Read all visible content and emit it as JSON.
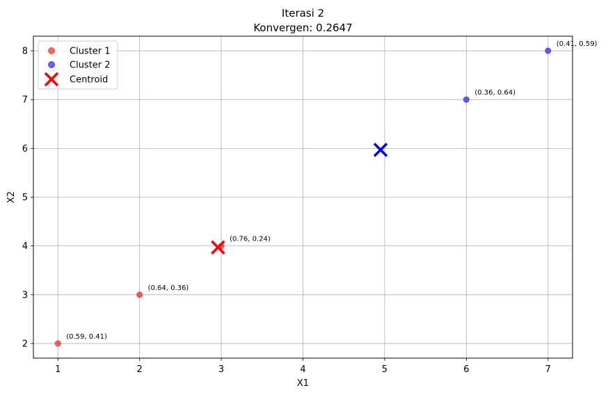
{
  "chart_data": {
    "type": "scatter",
    "title": "Iterasi 2",
    "subtitle": "Konvergen: 0.2647",
    "xlabel": "X1",
    "ylabel": "X2",
    "xlim": [
      0.7,
      7.3
    ],
    "ylim": [
      1.7,
      8.3
    ],
    "xticks": [
      "1",
      "2",
      "3",
      "4",
      "5",
      "6",
      "7"
    ],
    "yticks": [
      "2",
      "3",
      "4",
      "5",
      "6",
      "7",
      "8"
    ],
    "grid": true,
    "legend_position": "top-left",
    "series": [
      {
        "name": "Cluster 1",
        "color": "#ff0000",
        "marker": "circle",
        "points": [
          {
            "x": 1,
            "y": 2,
            "label": "(0.59, 0.41)"
          },
          {
            "x": 2,
            "y": 3,
            "label": "(0.64, 0.36)"
          },
          {
            "x": 3,
            "y": 4,
            "label": "(0.76, 0.24)"
          }
        ]
      },
      {
        "name": "Cluster 2",
        "color": "#0000ff",
        "marker": "circle",
        "points": [
          {
            "x": 6,
            "y": 7,
            "label": "(0.36, 0.64)"
          },
          {
            "x": 7,
            "y": 8,
            "label": "(0.41, 0.59)"
          }
        ]
      }
    ],
    "centroids": {
      "name": "Centroid",
      "marker": "x",
      "points": [
        {
          "x": 2.96,
          "y": 3.97,
          "color": "#ff0000"
        },
        {
          "x": 4.95,
          "y": 5.97,
          "color": "#0000ff"
        }
      ]
    }
  }
}
